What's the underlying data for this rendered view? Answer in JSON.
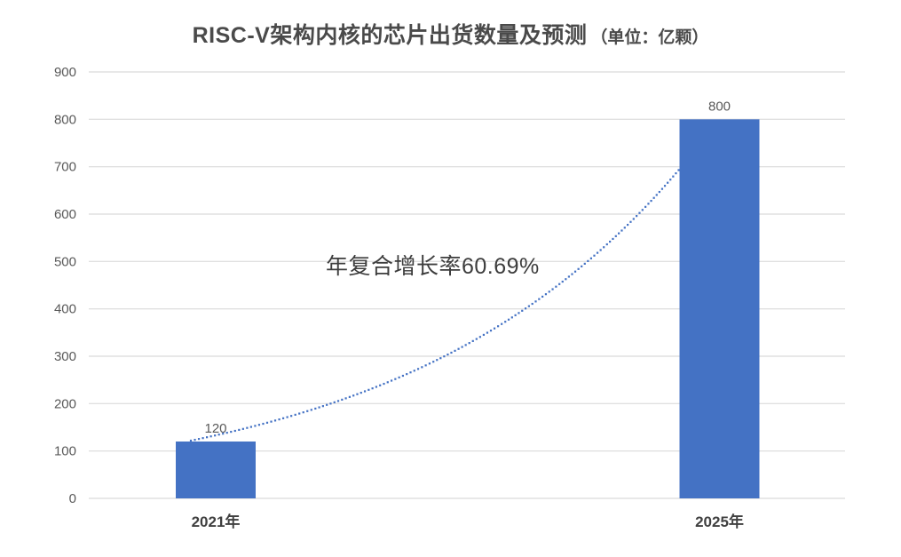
{
  "title": {
    "main": "RISC-V架构内核的芯片出货数量及预测",
    "unit": "（单位：亿颗）"
  },
  "annotation": {
    "text": "年复合增长率60.69%"
  },
  "chart_data": {
    "type": "bar",
    "title": "RISC-V架构内核的芯片出货数量及预测（单位：亿颗）",
    "categories": [
      "2021年",
      "2025年"
    ],
    "values": [
      120,
      800
    ],
    "data_labels": [
      "120",
      "800"
    ],
    "xlabel": "",
    "ylabel": "",
    "ylim": [
      0,
      900
    ],
    "ytick_step": 100,
    "grid": true,
    "legend": "none",
    "trendline": {
      "type": "exponential",
      "style": "dotted",
      "from_value": 120,
      "to_value": 800,
      "annotation": "年复合增长率60.69%",
      "cagr_percent": 60.69
    }
  },
  "colors": {
    "bar": "#4472C4",
    "trendline": "#4472C4",
    "gridline": "#E0E0E0",
    "axis_text": "#595959",
    "category_text": "#404040",
    "title_text": "#4A4A4A",
    "annotation_text": "#3D3D3D",
    "background": "#FFFFFF"
  }
}
